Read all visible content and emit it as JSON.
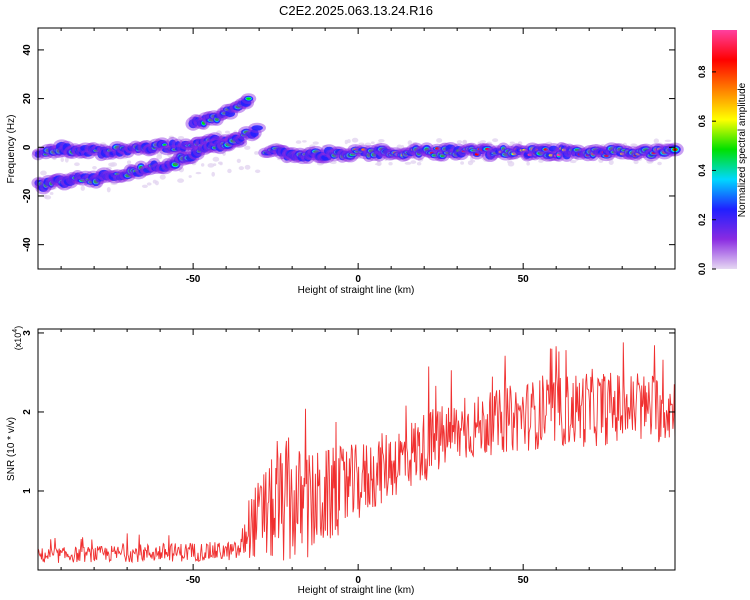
{
  "chart_data": [
    {
      "type": "heatmap",
      "title": "C2E2.2025.063.13.24.R16",
      "xlabel": "Height of straight line (km)",
      "ylabel": "Frequency (Hz)",
      "xlim": [
        -97,
        96
      ],
      "ylim": [
        -50,
        49
      ],
      "xticks": [
        -50,
        0,
        50
      ],
      "yticks": [
        -40,
        -20,
        0,
        20,
        40
      ],
      "colorbar": {
        "label": "Normalized spectral amplitude",
        "range": [
          0.0,
          0.97
        ],
        "ticks": [
          0.0,
          0.2,
          0.4,
          0.6,
          0.8
        ],
        "colormap": [
          "#e6d8f2",
          "#8a2be2",
          "#2020ff",
          "#00d8ff",
          "#00e000",
          "#ffff00",
          "#ff8000",
          "#ff0000",
          "#ff40a0"
        ]
      },
      "tracks": [
        {
          "x": [
            -97,
            -90,
            -80,
            -70,
            -60,
            -50,
            -42,
            -36
          ],
          "y": [
            -2,
            -1,
            -2,
            -1,
            0,
            1,
            2,
            3
          ]
        },
        {
          "x": [
            -97,
            -90,
            -80,
            -70,
            -60,
            -50,
            -42,
            -35,
            -30
          ],
          "y": [
            -16,
            -14,
            -13,
            -11,
            -8,
            -3,
            1,
            4,
            8
          ]
        },
        {
          "x": [
            -50,
            -44,
            -38,
            -33
          ],
          "y": [
            9,
            12,
            15,
            20
          ]
        },
        {
          "x": [
            -28,
            -20,
            -10,
            0,
            20,
            40,
            60,
            80,
            96
          ],
          "y": [
            -1,
            -3,
            -3,
            -2,
            -2,
            -2,
            -2,
            -2,
            -2
          ]
        }
      ]
    },
    {
      "type": "line",
      "xlabel": "Height of straight line (km)",
      "ylabel": "SNR (10 * v/v)",
      "y_multiplier": "(x10",
      "y_multiplier_exp": "4",
      "y_multiplier_close": ")",
      "xlim": [
        -97,
        96
      ],
      "ylim": [
        0,
        3.05
      ],
      "xticks": [
        -50,
        0,
        50
      ],
      "yticks": [
        1,
        2,
        3
      ],
      "color": "#f03030",
      "trend": {
        "x": [
          -97,
          -80,
          -60,
          -36,
          -33,
          -28,
          -22,
          -15,
          -8,
          0,
          8,
          15,
          22,
          30,
          40,
          50,
          60,
          70,
          80,
          96
        ],
        "y": [
          0.18,
          0.2,
          0.22,
          0.24,
          0.55,
          0.7,
          0.85,
          0.8,
          0.95,
          1.1,
          1.3,
          1.45,
          1.6,
          1.75,
          1.85,
          1.95,
          2.0,
          2.05,
          2.05,
          2.05
        ],
        "amp": [
          0.1,
          0.1,
          0.12,
          0.12,
          0.4,
          0.6,
          0.8,
          0.7,
          0.6,
          0.5,
          0.45,
          0.45,
          0.45,
          0.4,
          0.4,
          0.45,
          0.45,
          0.5,
          0.45,
          0.45
        ]
      }
    }
  ]
}
